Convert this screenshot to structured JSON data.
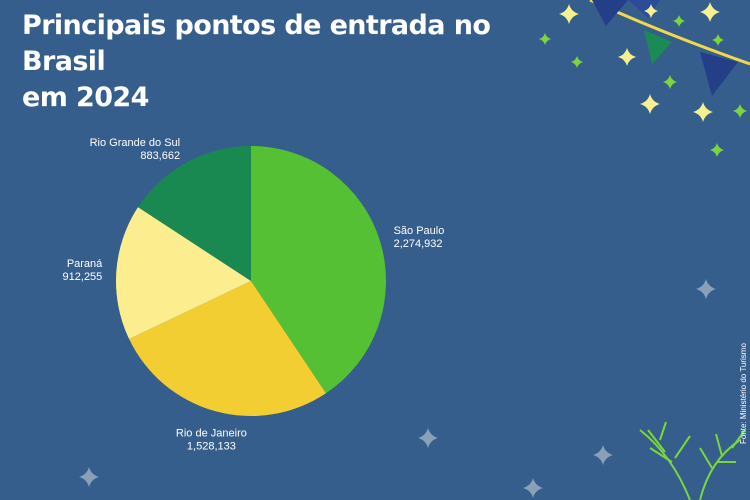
{
  "title_lines": [
    "Principais pontos de entrada no Brasil",
    "em 2024"
  ],
  "source": "Fonte: Ministério do Turismo",
  "chart_data": {
    "type": "pie",
    "title": "Principais pontos de entrada no Brasil em 2024",
    "slices": [
      {
        "label": "São Paulo",
        "value": 2274932,
        "value_text": "2,274,932",
        "color": "#56c035"
      },
      {
        "label": "Rio de Janeiro",
        "value": 1528133,
        "value_text": "1,528,133",
        "color": "#f2ce33"
      },
      {
        "label": "Paraná",
        "value": 912255,
        "value_text": "912,255",
        "color": "#fcee8f"
      },
      {
        "label": "Rio Grande do Sul",
        "value": 883662,
        "value_text": "883,662",
        "color": "#198851"
      }
    ],
    "start_angle": "12 o'clock",
    "direction": "clockwise",
    "labels": "outside"
  },
  "decor": {
    "background": "#355e8d",
    "bunting_colors": [
      "#233f88",
      "#1b8a55",
      "#233f88",
      "#233f88"
    ],
    "star_colors": {
      "yellow": "#f6f08e",
      "green": "#7bd63b",
      "grey": "#8aa0b8"
    }
  }
}
